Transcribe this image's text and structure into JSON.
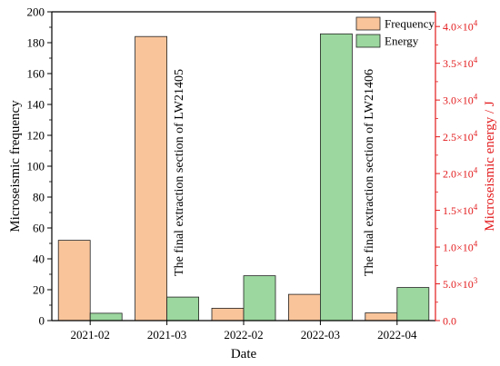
{
  "chart_data": {
    "type": "bar",
    "xlabel": "Date",
    "categories": [
      "2021-02",
      "2021-03",
      "2022-02",
      "2022-03",
      "2022-04"
    ],
    "series": [
      {
        "name": "Frequency",
        "axis": "left",
        "color": "#F9C49A",
        "values": [
          52,
          184,
          8,
          17,
          5
        ]
      },
      {
        "name": "Energy",
        "axis": "right",
        "color": "#9BD79E",
        "values": [
          1000,
          3200,
          6100,
          39000,
          4500
        ]
      }
    ],
    "left_axis": {
      "label": "Microseismic frequency",
      "ylim": [
        0,
        200
      ],
      "ticks": [
        0,
        20,
        40,
        60,
        80,
        100,
        120,
        140,
        160,
        180,
        200
      ]
    },
    "right_axis": {
      "label": "Microseismic energy / J",
      "color": "#E31A1C",
      "ylim": [
        0,
        42000
      ],
      "ticks": [
        {
          "value": 0,
          "mant": "0.0",
          "exp": ""
        },
        {
          "value": 5000,
          "mant": "5.0×10",
          "exp": "3"
        },
        {
          "value": 10000,
          "mant": "1.0×10",
          "exp": "4"
        },
        {
          "value": 15000,
          "mant": "1.5×10",
          "exp": "4"
        },
        {
          "value": 20000,
          "mant": "2.0×10",
          "exp": "4"
        },
        {
          "value": 25000,
          "mant": "2.5×10",
          "exp": "4"
        },
        {
          "value": 30000,
          "mant": "3.0×10",
          "exp": "4"
        },
        {
          "value": 35000,
          "mant": "3.5×10",
          "exp": "4"
        },
        {
          "value": 40000,
          "mant": "4.0×10",
          "exp": "4"
        }
      ]
    },
    "annotations": [
      "The final extraction section of LW21405",
      "The final extraction section of LW21406"
    ],
    "legend": {
      "placement": "top-right",
      "items": [
        "Frequency",
        "Energy"
      ]
    },
    "grid": false
  }
}
